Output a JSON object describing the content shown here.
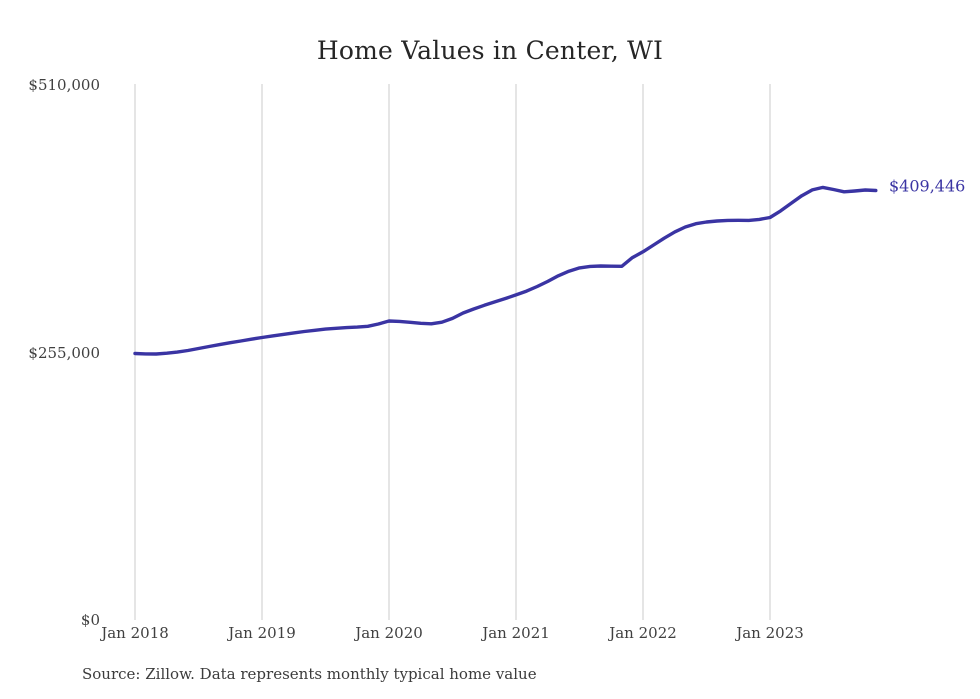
{
  "title": "Home Values in Center, WI",
  "source_note": "Source: Zillow. Data represents monthly typical home value",
  "colors": {
    "line": "#3a34a3",
    "grid": "#cbcbcb",
    "title_text": "#262626",
    "axis_text": "#404040"
  },
  "chart_data": {
    "type": "line",
    "title": "Home Values in Center, WI",
    "xlabel": "",
    "ylabel": "",
    "x_start": "Jan 2018",
    "x_end": "Nov 2023",
    "x_frequency": "monthly",
    "xticks": [
      "Jan 2018",
      "Jan 2019",
      "Jan 2020",
      "Jan 2021",
      "Jan 2022",
      "Jan 2023"
    ],
    "yticks": [
      {
        "label": "$510,000",
        "value": 510000
      },
      {
        "label": "$255,000",
        "value": 255000
      },
      {
        "label": "$0",
        "value": 0
      }
    ],
    "ylim": [
      0,
      510000
    ],
    "grid": "vertical-only",
    "legend": "none",
    "last_value": 409446,
    "last_value_label": "$409,446",
    "series": [
      {
        "name": "Typical home value",
        "values": [
          254000,
          253700,
          253600,
          254300,
          255400,
          256900,
          258800,
          260700,
          262500,
          264300,
          266000,
          267700,
          269300,
          270800,
          272300,
          273700,
          275000,
          276200,
          277300,
          278100,
          278700,
          279200,
          280000,
          282200,
          285000,
          284600,
          283800,
          282800,
          282400,
          283900,
          287500,
          292700,
          296500,
          300000,
          303200,
          306500,
          309900,
          313500,
          317900,
          322800,
          328100,
          332500,
          335600,
          337100,
          337500,
          337300,
          337200,
          345500,
          351000,
          357500,
          364000,
          370000,
          374600,
          377800,
          379400,
          380400,
          380900,
          381000,
          380900,
          381900,
          383700,
          390000,
          397300,
          404500,
          410000,
          412400,
          410400,
          408200,
          409000,
          409900,
          409446
        ]
      }
    ]
  }
}
